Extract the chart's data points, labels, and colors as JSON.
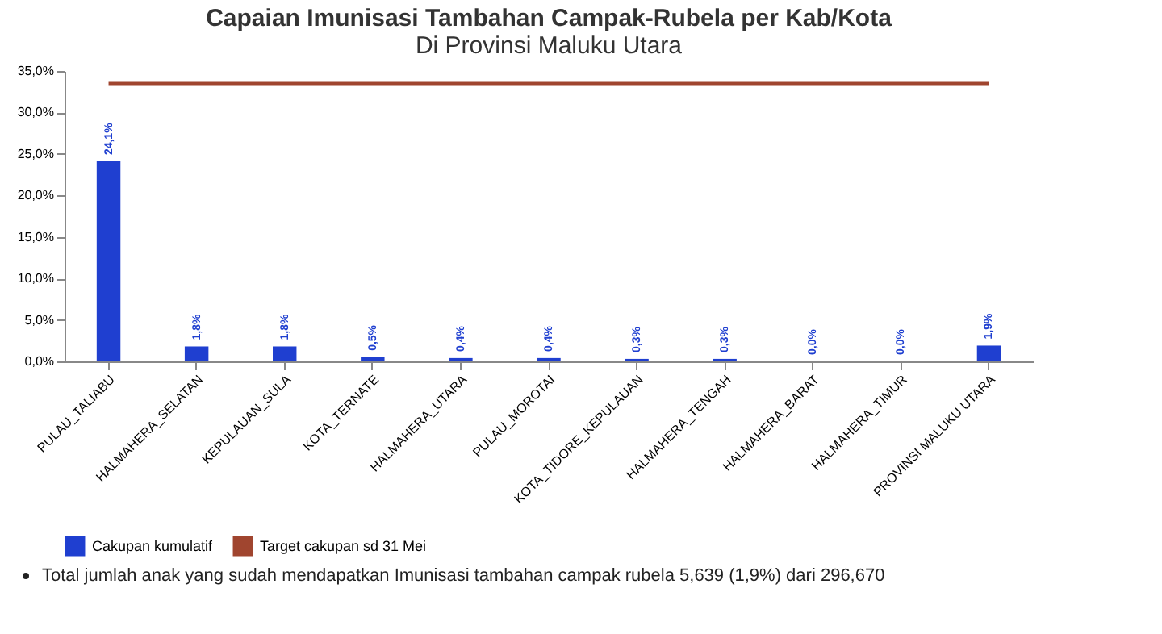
{
  "chart_data": {
    "type": "bar",
    "title": "Capaian Imunisasi Tambahan Campak-Rubela per Kab/Kota",
    "subtitle": "Di Provinsi Maluku Utara",
    "categories": [
      "PULAU_TALIABU",
      "HALMAHERA_SELATAN",
      "KEPULAUAN_SULA",
      "KOTA_TERNATE",
      "HALMAHERA_UTARA",
      "PULAU_MOROTAI",
      "KOTA_TIDORE_KEPULAUAN",
      "HALMAHERA_TENGAH",
      "HALMAHERA_BARAT",
      "HALMAHERA_TIMUR",
      "PROVINSI MALUKU UTARA"
    ],
    "series": [
      {
        "name": "Cakupan kumulatif",
        "color": "#1f3fd0",
        "values": [
          24.1,
          1.8,
          1.8,
          0.5,
          0.4,
          0.4,
          0.3,
          0.3,
          0.0,
          0.0,
          1.9
        ],
        "value_labels": [
          "24,1%",
          "1,8%",
          "1,8%",
          "0,5%",
          "0,4%",
          "0,4%",
          "0,3%",
          "0,3%",
          "0,0%",
          "0,0%",
          "1,9%"
        ]
      },
      {
        "name": "Target cakupan sd 31 Mei",
        "type": "line",
        "color": "#a0452f",
        "values": [
          33.5,
          33.5,
          33.5,
          33.5,
          33.5,
          33.5,
          33.5,
          33.5,
          33.5,
          33.5,
          33.5
        ]
      }
    ],
    "ylim": [
      0,
      35
    ],
    "yticks": [
      {
        "value": 0,
        "label": "0,0%"
      },
      {
        "value": 5,
        "label": "5,0%"
      },
      {
        "value": 10,
        "label": "10,0%"
      },
      {
        "value": 15,
        "label": "15,0%"
      },
      {
        "value": 20,
        "label": "20,0%"
      },
      {
        "value": 25,
        "label": "25,0%"
      },
      {
        "value": 30,
        "label": "30,0%"
      },
      {
        "value": 35,
        "label": "35,0%"
      }
    ],
    "legend": "bottom",
    "annotations": [
      "Total jumlah anak yang sudah mendapatkan Imunisasi tambahan campak rubela 5,639 (1,9%) dari 296,670"
    ]
  }
}
